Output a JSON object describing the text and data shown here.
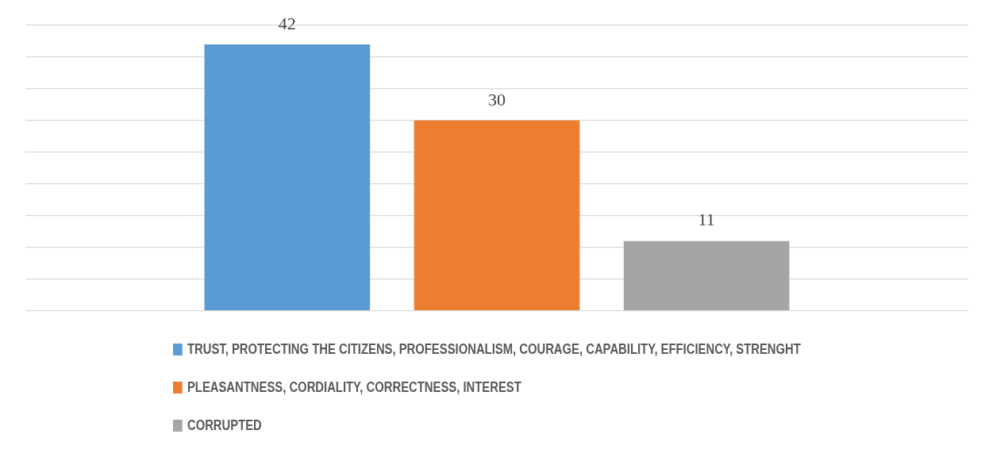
{
  "chart_data": {
    "type": "bar",
    "categories": [
      null
    ],
    "series": [
      {
        "name": "TRUST, PROTECTING THE CITIZENS, PROFESSIONALISM, COURAGE, CAPABILITY, EFFICIENCY, STRENGHT",
        "color": "#5b9bd5",
        "values": [
          42
        ]
      },
      {
        "name": "PLEASANTNESS, CORDIALITY, CORRECTNESS, INTEREST",
        "color": "#ed7d31",
        "values": [
          30
        ]
      },
      {
        "name": "CORRUPTED",
        "color": "#a5a5a5",
        "values": [
          11
        ]
      }
    ],
    "ylim": [
      0,
      45
    ],
    "yticks": [
      {
        "value": 0,
        "label": null
      },
      {
        "value": 5,
        "label": null
      },
      {
        "value": 10,
        "label": null
      },
      {
        "value": 15,
        "label": null
      },
      {
        "value": 20,
        "label": null
      },
      {
        "value": 25,
        "label": null
      },
      {
        "value": 30,
        "label": null
      },
      {
        "value": 35,
        "label": null
      },
      {
        "value": 40,
        "label": null
      },
      {
        "value": 45,
        "label": null
      }
    ],
    "grid": "y",
    "data_labels": true,
    "legend": "bottom"
  }
}
